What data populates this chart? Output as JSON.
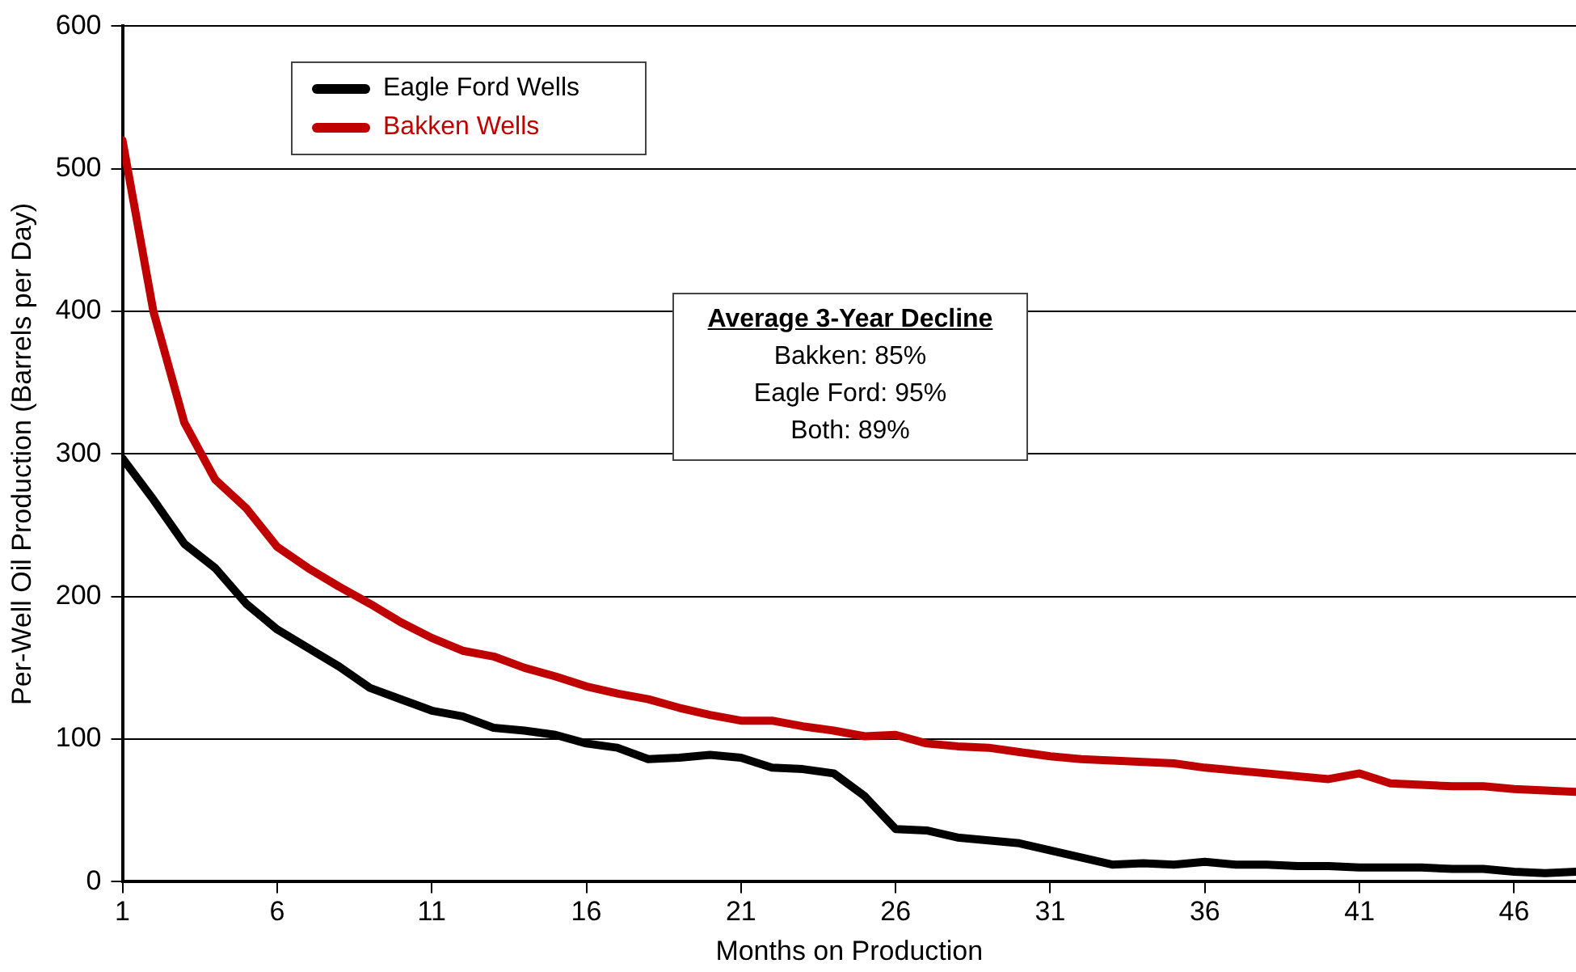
{
  "chart_data": {
    "type": "line",
    "xlabel": "Months on Production",
    "ylabel": "Per-Well Oil Production (Barrels per Day)",
    "x": [
      1,
      2,
      3,
      4,
      5,
      6,
      7,
      8,
      9,
      10,
      11,
      12,
      13,
      14,
      15,
      16,
      17,
      18,
      19,
      20,
      21,
      22,
      23,
      24,
      25,
      26,
      27,
      28,
      29,
      30,
      31,
      32,
      33,
      34,
      35,
      36,
      37,
      38,
      39,
      40,
      41,
      42,
      43,
      44,
      45,
      46,
      47,
      48
    ],
    "series": [
      {
        "name": "Eagle Ford Wells",
        "color": "#000000",
        "values": [
          297,
          268,
          237,
          220,
          195,
          177,
          164,
          151,
          136,
          128,
          120,
          116,
          108,
          106,
          103,
          97,
          94,
          86,
          87,
          89,
          87,
          80,
          79,
          76,
          60,
          37,
          36,
          31,
          29,
          27,
          22,
          17,
          12,
          13,
          12,
          14,
          12,
          12,
          11,
          11,
          10,
          10,
          10,
          9,
          9,
          7,
          6,
          7
        ]
      },
      {
        "name": "Bakken Wells",
        "color": "#c00000",
        "values": [
          520,
          400,
          322,
          282,
          262,
          235,
          220,
          207,
          195,
          182,
          171,
          162,
          158,
          150,
          144,
          137,
          132,
          128,
          122,
          117,
          113,
          113,
          109,
          106,
          102,
          103,
          97,
          95,
          94,
          91,
          88,
          86,
          85,
          84,
          83,
          80,
          78,
          76,
          74,
          72,
          76,
          69,
          68,
          67,
          67,
          65,
          64,
          63
        ]
      }
    ],
    "xlim": [
      1,
      48
    ],
    "xticks": [
      1,
      6,
      11,
      16,
      21,
      26,
      31,
      36,
      41,
      46
    ],
    "ylim": [
      0,
      600
    ],
    "yticks": [
      0,
      100,
      200,
      300,
      400,
      500,
      600
    ],
    "grid": "y",
    "legend": "top left",
    "marker": "none",
    "line_style": "solid",
    "annotations": [
      "Average 3-Year Decline",
      "Bakken: 85%",
      "Eagle Ford: 95%",
      "Both: 89%"
    ]
  }
}
